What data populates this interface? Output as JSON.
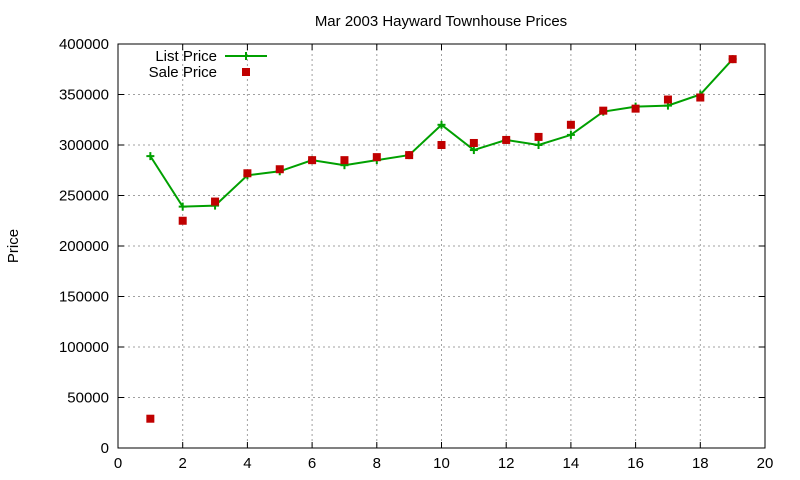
{
  "chart_data": {
    "type": "line",
    "title": "Mar 2003 Hayward Townhouse Prices",
    "xlabel": "",
    "ylabel": "Price",
    "xlim": [
      0,
      20
    ],
    "ylim": [
      0,
      400000
    ],
    "xticks": [
      "0",
      "2",
      "4",
      "6",
      "8",
      "10",
      "12",
      "14",
      "16",
      "18",
      "20"
    ],
    "yticks": [
      "0",
      "50000",
      "100000",
      "150000",
      "200000",
      "250000",
      "300000",
      "350000",
      "400000"
    ],
    "grid": true,
    "legend_position": "top-left",
    "series": [
      {
        "name": "List Price",
        "style": "line-points",
        "marker": "plus",
        "color": "#00a000",
        "x": [
          1,
          2,
          3,
          4,
          5,
          6,
          7,
          8,
          9,
          10,
          11,
          12,
          13,
          14,
          15,
          16,
          17,
          18,
          19
        ],
        "y": [
          289000,
          239000,
          240000,
          270000,
          274000,
          285000,
          280000,
          285000,
          290000,
          320000,
          295000,
          305000,
          300000,
          310000,
          333000,
          338000,
          339000,
          350000,
          385000
        ]
      },
      {
        "name": "Sale Price",
        "style": "points",
        "marker": "square",
        "color": "#c00000",
        "x": [
          1,
          2,
          3,
          4,
          5,
          6,
          7,
          8,
          9,
          10,
          11,
          12,
          13,
          14,
          15,
          16,
          17,
          18,
          19
        ],
        "y": [
          29000,
          225000,
          244000,
          272000,
          276000,
          285000,
          285000,
          288000,
          290000,
          300000,
          302000,
          305000,
          308000,
          320000,
          334000,
          336000,
          345000,
          347000,
          385000
        ]
      }
    ]
  }
}
